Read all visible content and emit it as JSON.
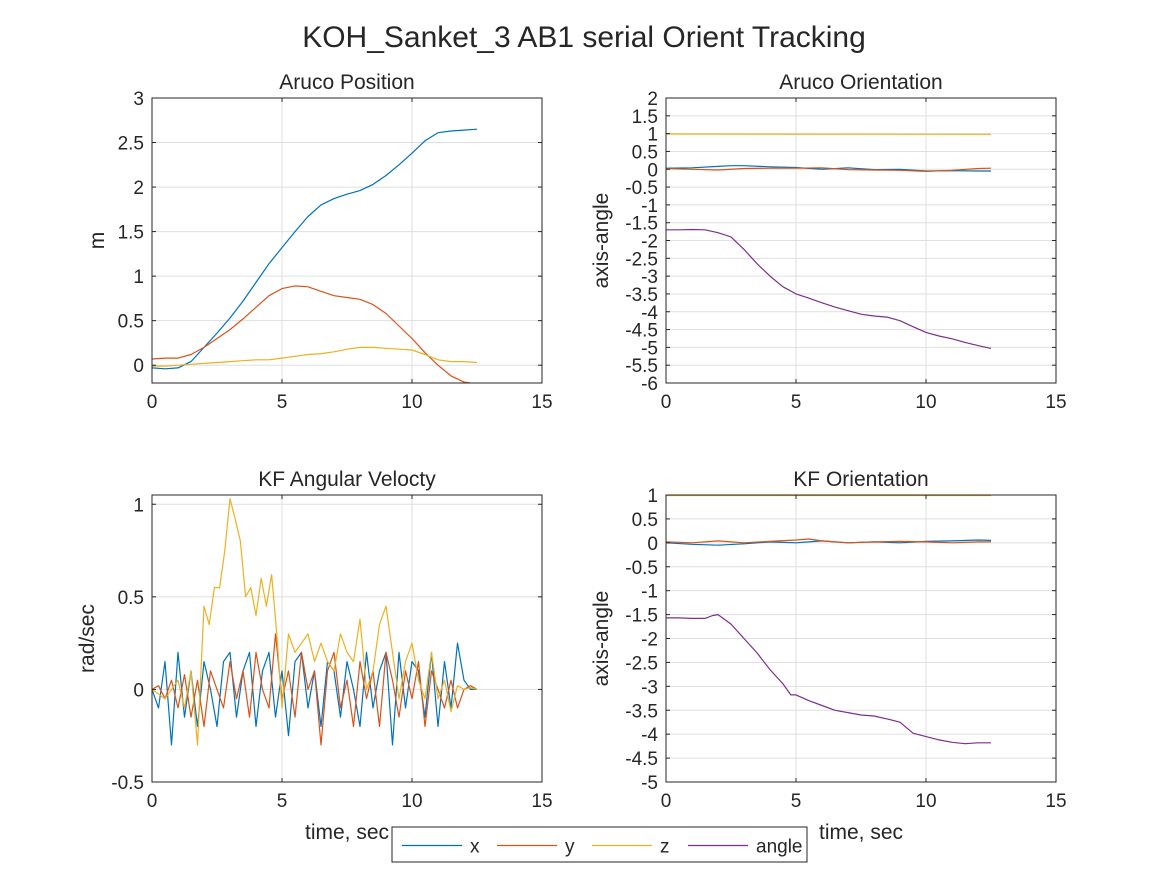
{
  "figure": {
    "title": "KOH_Sanket_3 AB1 serial Orient Tracking",
    "legend": {
      "placement": "bottom-center",
      "entries": [
        {
          "label": "x",
          "color": "#0072BD"
        },
        {
          "label": "y",
          "color": "#D95319"
        },
        {
          "label": "z",
          "color": "#EDB120"
        },
        {
          "label": "angle",
          "color": "#7E2F8E"
        }
      ]
    }
  },
  "chart_data": [
    {
      "type": "line",
      "title": "Aruco Position",
      "xlabel": "",
      "ylabel": "m",
      "xlim": [
        0,
        15
      ],
      "ylim": [
        -0.2,
        3
      ],
      "xticks": [
        0,
        5,
        10,
        15
      ],
      "yticks": [
        0,
        0.5,
        1,
        1.5,
        2,
        2.5,
        3
      ],
      "grid": true,
      "series": [
        {
          "color": "#0072BD",
          "x": [
            0,
            0.5,
            1,
            1.5,
            2,
            2.5,
            3,
            3.5,
            4,
            4.5,
            5,
            5.5,
            6,
            6.5,
            7,
            7.5,
            8,
            8.5,
            9,
            9.5,
            10,
            10.5,
            11,
            11.5,
            12,
            12.5
          ],
          "y": [
            -0.03,
            -0.04,
            -0.03,
            0.04,
            0.2,
            0.36,
            0.53,
            0.72,
            0.93,
            1.14,
            1.32,
            1.5,
            1.67,
            1.8,
            1.87,
            1.92,
            1.96,
            2.03,
            2.13,
            2.25,
            2.38,
            2.52,
            2.61,
            2.63,
            2.64,
            2.65
          ]
        },
        {
          "color": "#D95319",
          "x": [
            0,
            0.5,
            1,
            1.5,
            2,
            2.5,
            3,
            3.5,
            4,
            4.5,
            5,
            5.5,
            6,
            6.5,
            7,
            7.5,
            8,
            8.5,
            9,
            9.5,
            10,
            10.5,
            11,
            11.5,
            12,
            12.5
          ],
          "y": [
            0.07,
            0.08,
            0.08,
            0.12,
            0.2,
            0.3,
            0.4,
            0.52,
            0.65,
            0.78,
            0.86,
            0.89,
            0.88,
            0.83,
            0.78,
            0.76,
            0.74,
            0.68,
            0.58,
            0.44,
            0.3,
            0.14,
            0.0,
            -0.12,
            -0.19,
            -0.21
          ]
        },
        {
          "color": "#EDB120",
          "x": [
            0,
            0.5,
            1,
            1.5,
            2,
            2.5,
            3,
            3.5,
            4,
            4.5,
            5,
            5.5,
            6,
            6.5,
            7,
            7.5,
            8,
            8.5,
            9,
            9.5,
            10,
            10.5,
            11,
            11.5,
            12,
            12.5
          ],
          "y": [
            -0.01,
            -0.01,
            0.0,
            0.01,
            0.02,
            0.03,
            0.04,
            0.05,
            0.06,
            0.06,
            0.08,
            0.1,
            0.12,
            0.13,
            0.15,
            0.18,
            0.2,
            0.2,
            0.19,
            0.18,
            0.17,
            0.12,
            0.06,
            0.04,
            0.04,
            0.03
          ]
        }
      ]
    },
    {
      "type": "line",
      "title": "Aruco Orientation",
      "xlabel": "",
      "ylabel": "axis-angle",
      "xlim": [
        0,
        15
      ],
      "ylim": [
        -6,
        2
      ],
      "xticks": [
        0,
        5,
        10,
        15
      ],
      "yticks": [
        -6,
        -5.5,
        -5,
        -4.5,
        -4,
        -3.5,
        -3,
        -2.5,
        -2,
        -1.5,
        -1,
        -0.5,
        0,
        0.5,
        1,
        1.5,
        2
      ],
      "grid": true,
      "series": [
        {
          "color": "#0072BD",
          "x": [
            0,
            1,
            2,
            2.5,
            3,
            4,
            5,
            6,
            7,
            8,
            9,
            10,
            11,
            12,
            12.5
          ],
          "y": [
            0.03,
            0.04,
            0.08,
            0.1,
            0.1,
            0.07,
            0.05,
            0.0,
            0.04,
            -0.01,
            0.0,
            -0.05,
            -0.04,
            -0.05,
            -0.05
          ]
        },
        {
          "color": "#D95319",
          "x": [
            0,
            1,
            2,
            3,
            4,
            5,
            6,
            7,
            8,
            9,
            10,
            11,
            12,
            12.5
          ],
          "y": [
            0.02,
            0.0,
            -0.02,
            0.02,
            0.03,
            0.03,
            0.04,
            -0.01,
            -0.02,
            -0.03,
            -0.06,
            -0.03,
            0.02,
            0.03
          ]
        },
        {
          "color": "#EDB120",
          "x": [
            0,
            12.5
          ],
          "y": [
            0.99,
            0.98
          ]
        },
        {
          "color": "#7E2F8E",
          "x": [
            0,
            0.5,
            1,
            1.5,
            2,
            2.5,
            3,
            3.5,
            4,
            4.5,
            5,
            5.5,
            6,
            6.5,
            7,
            7.5,
            8,
            8.5,
            9,
            9.5,
            10,
            10.5,
            11,
            11.5,
            12,
            12.5
          ],
          "y": [
            -1.7,
            -1.7,
            -1.69,
            -1.7,
            -1.78,
            -1.9,
            -2.25,
            -2.65,
            -3.0,
            -3.3,
            -3.5,
            -3.62,
            -3.75,
            -3.87,
            -3.97,
            -4.07,
            -4.12,
            -4.15,
            -4.25,
            -4.42,
            -4.58,
            -4.68,
            -4.76,
            -4.86,
            -4.95,
            -5.03
          ]
        }
      ]
    },
    {
      "type": "line",
      "title": "KF Angular Velocty",
      "xlabel": "time, sec",
      "ylabel": "rad/sec",
      "xlim": [
        0,
        15
      ],
      "ylim": [
        -0.5,
        1.05
      ],
      "xticks": [
        0,
        5,
        10,
        15
      ],
      "yticks": [
        -0.5,
        0,
        0.5,
        1
      ],
      "grid": true,
      "series": [
        {
          "color": "#0072BD",
          "x": [
            0,
            0.25,
            0.5,
            0.75,
            1,
            1.25,
            1.5,
            1.75,
            2,
            2.25,
            2.5,
            2.75,
            3,
            3.25,
            3.5,
            3.75,
            4,
            4.25,
            4.5,
            4.75,
            5,
            5.25,
            5.5,
            5.75,
            6,
            6.25,
            6.5,
            6.75,
            7,
            7.25,
            7.5,
            7.75,
            8,
            8.25,
            8.5,
            8.75,
            9,
            9.25,
            9.5,
            9.75,
            10,
            10.25,
            10.5,
            10.75,
            11,
            11.25,
            11.5,
            11.75,
            12,
            12.25,
            12.5
          ],
          "y": [
            0.0,
            -0.1,
            0.15,
            -0.3,
            0.2,
            -0.15,
            0.1,
            -0.2,
            0.15,
            0.0,
            -0.2,
            0.15,
            0.2,
            -0.15,
            0.1,
            0.2,
            -0.2,
            0.1,
            0.2,
            -0.15,
            0.1,
            -0.25,
            0.15,
            0.2,
            -0.1,
            0.1,
            -0.2,
            0.15,
            0.1,
            -0.15,
            0.15,
            0.0,
            -0.2,
            0.2,
            -0.1,
            0.1,
            0.2,
            -0.3,
            0.2,
            -0.1,
            0.15,
            0.1,
            -0.15,
            0.2,
            -0.2,
            0.15,
            -0.1,
            0.25,
            0.05,
            0.0,
            0.0
          ]
        },
        {
          "color": "#D95319",
          "x": [
            0,
            0.25,
            0.5,
            0.75,
            1,
            1.25,
            1.5,
            1.75,
            2,
            2.25,
            2.5,
            2.75,
            3,
            3.25,
            3.5,
            3.75,
            4,
            4.25,
            4.5,
            4.75,
            5,
            5.25,
            5.5,
            5.75,
            6,
            6.25,
            6.5,
            6.75,
            7,
            7.25,
            7.5,
            7.75,
            8,
            8.25,
            8.5,
            8.75,
            9,
            9.25,
            9.5,
            9.75,
            10,
            10.25,
            10.5,
            10.75,
            11,
            11.25,
            11.5,
            11.75,
            12,
            12.25,
            12.5
          ],
          "y": [
            0.0,
            0.02,
            -0.05,
            0.05,
            -0.1,
            0.08,
            -0.15,
            0.05,
            -0.2,
            0.1,
            0.0,
            -0.1,
            0.15,
            -0.05,
            0.1,
            -0.15,
            0.2,
            0.0,
            -0.1,
            0.3,
            -0.05,
            0.1,
            -0.15,
            0.2,
            0.0,
            0.1,
            -0.3,
            0.1,
            0.2,
            -0.1,
            0.05,
            -0.2,
            0.15,
            -0.05,
            0.1,
            -0.2,
            0.2,
            0.05,
            -0.15,
            0.1,
            -0.05,
            0.15,
            -0.2,
            0.1,
            0.0,
            -0.1,
            0.05,
            -0.1,
            0.0,
            0.02,
            0.0
          ]
        },
        {
          "color": "#EDB120",
          "x": [
            0,
            0.5,
            1,
            1.25,
            1.5,
            1.75,
            2,
            2.2,
            2.4,
            2.6,
            2.8,
            3,
            3.2,
            3.4,
            3.6,
            3.8,
            4,
            4.2,
            4.4,
            4.6,
            4.8,
            5,
            5.25,
            5.5,
            5.75,
            6,
            6.25,
            6.5,
            6.75,
            7,
            7.25,
            7.5,
            7.75,
            8,
            8.25,
            8.5,
            8.75,
            9,
            9.25,
            9.5,
            9.75,
            10,
            10.25,
            10.5,
            10.75,
            11,
            11.25,
            11.5,
            11.75,
            12,
            12.25,
            12.5
          ],
          "y": [
            0.0,
            -0.05,
            0.05,
            -0.1,
            0.1,
            -0.3,
            0.45,
            0.35,
            0.55,
            0.55,
            0.75,
            1.03,
            0.92,
            0.8,
            0.5,
            0.55,
            0.4,
            0.6,
            0.45,
            0.62,
            0.3,
            -0.1,
            0.3,
            0.2,
            0.25,
            0.3,
            0.15,
            0.25,
            0.15,
            0.1,
            0.3,
            0.2,
            0.15,
            0.38,
            0.0,
            0.1,
            0.35,
            0.45,
            0.2,
            -0.05,
            0.15,
            0.25,
            0.05,
            -0.05,
            0.2,
            -0.05,
            0.05,
            -0.12,
            0.02,
            0.0,
            0.01,
            0.0
          ]
        }
      ]
    },
    {
      "type": "line",
      "title": "KF Orientation",
      "xlabel": "time, sec",
      "ylabel": "axis-angle",
      "xlim": [
        0,
        15
      ],
      "ylim": [
        -5,
        1
      ],
      "xticks": [
        0,
        5,
        10,
        15
      ],
      "yticks": [
        -5,
        -4.5,
        -4,
        -3.5,
        -3,
        -2.5,
        -2,
        -1.5,
        -1,
        -0.5,
        0,
        0.5,
        1
      ],
      "grid": true,
      "series": [
        {
          "color": "#0072BD",
          "x": [
            0,
            1,
            2,
            3,
            4,
            5,
            6,
            7,
            8,
            9,
            10,
            11,
            12,
            12.5
          ],
          "y": [
            0.0,
            -0.03,
            -0.05,
            -0.02,
            0.02,
            0.0,
            0.04,
            0.0,
            0.02,
            0.0,
            0.03,
            0.04,
            0.06,
            0.05
          ]
        },
        {
          "color": "#D95319",
          "x": [
            0,
            1,
            2,
            3,
            4,
            5,
            5.5,
            6,
            7,
            8,
            9,
            10,
            11,
            12,
            12.5
          ],
          "y": [
            0.02,
            0.0,
            0.04,
            0.0,
            0.03,
            0.06,
            0.08,
            0.04,
            0.0,
            0.02,
            0.03,
            0.02,
            0.0,
            0.02,
            0.02
          ]
        },
        {
          "color": "#EDB120",
          "x": [
            0,
            12.5
          ],
          "y": [
            0.99,
            0.99
          ]
        },
        {
          "color": "#7E2F8E",
          "x": [
            0,
            0.5,
            1,
            1.5,
            1.8,
            2,
            2.5,
            3,
            3.5,
            4,
            4.5,
            4.8,
            5,
            5.5,
            6,
            6.5,
            7,
            7.5,
            8,
            8.5,
            9,
            9.5,
            10,
            10.5,
            11,
            11.5,
            12,
            12.5
          ],
          "y": [
            -1.57,
            -1.57,
            -1.58,
            -1.58,
            -1.52,
            -1.5,
            -1.7,
            -2.0,
            -2.3,
            -2.65,
            -2.95,
            -3.18,
            -3.18,
            -3.3,
            -3.4,
            -3.5,
            -3.55,
            -3.6,
            -3.62,
            -3.68,
            -3.75,
            -3.98,
            -4.05,
            -4.12,
            -4.17,
            -4.2,
            -4.18,
            -4.18
          ]
        }
      ]
    }
  ]
}
